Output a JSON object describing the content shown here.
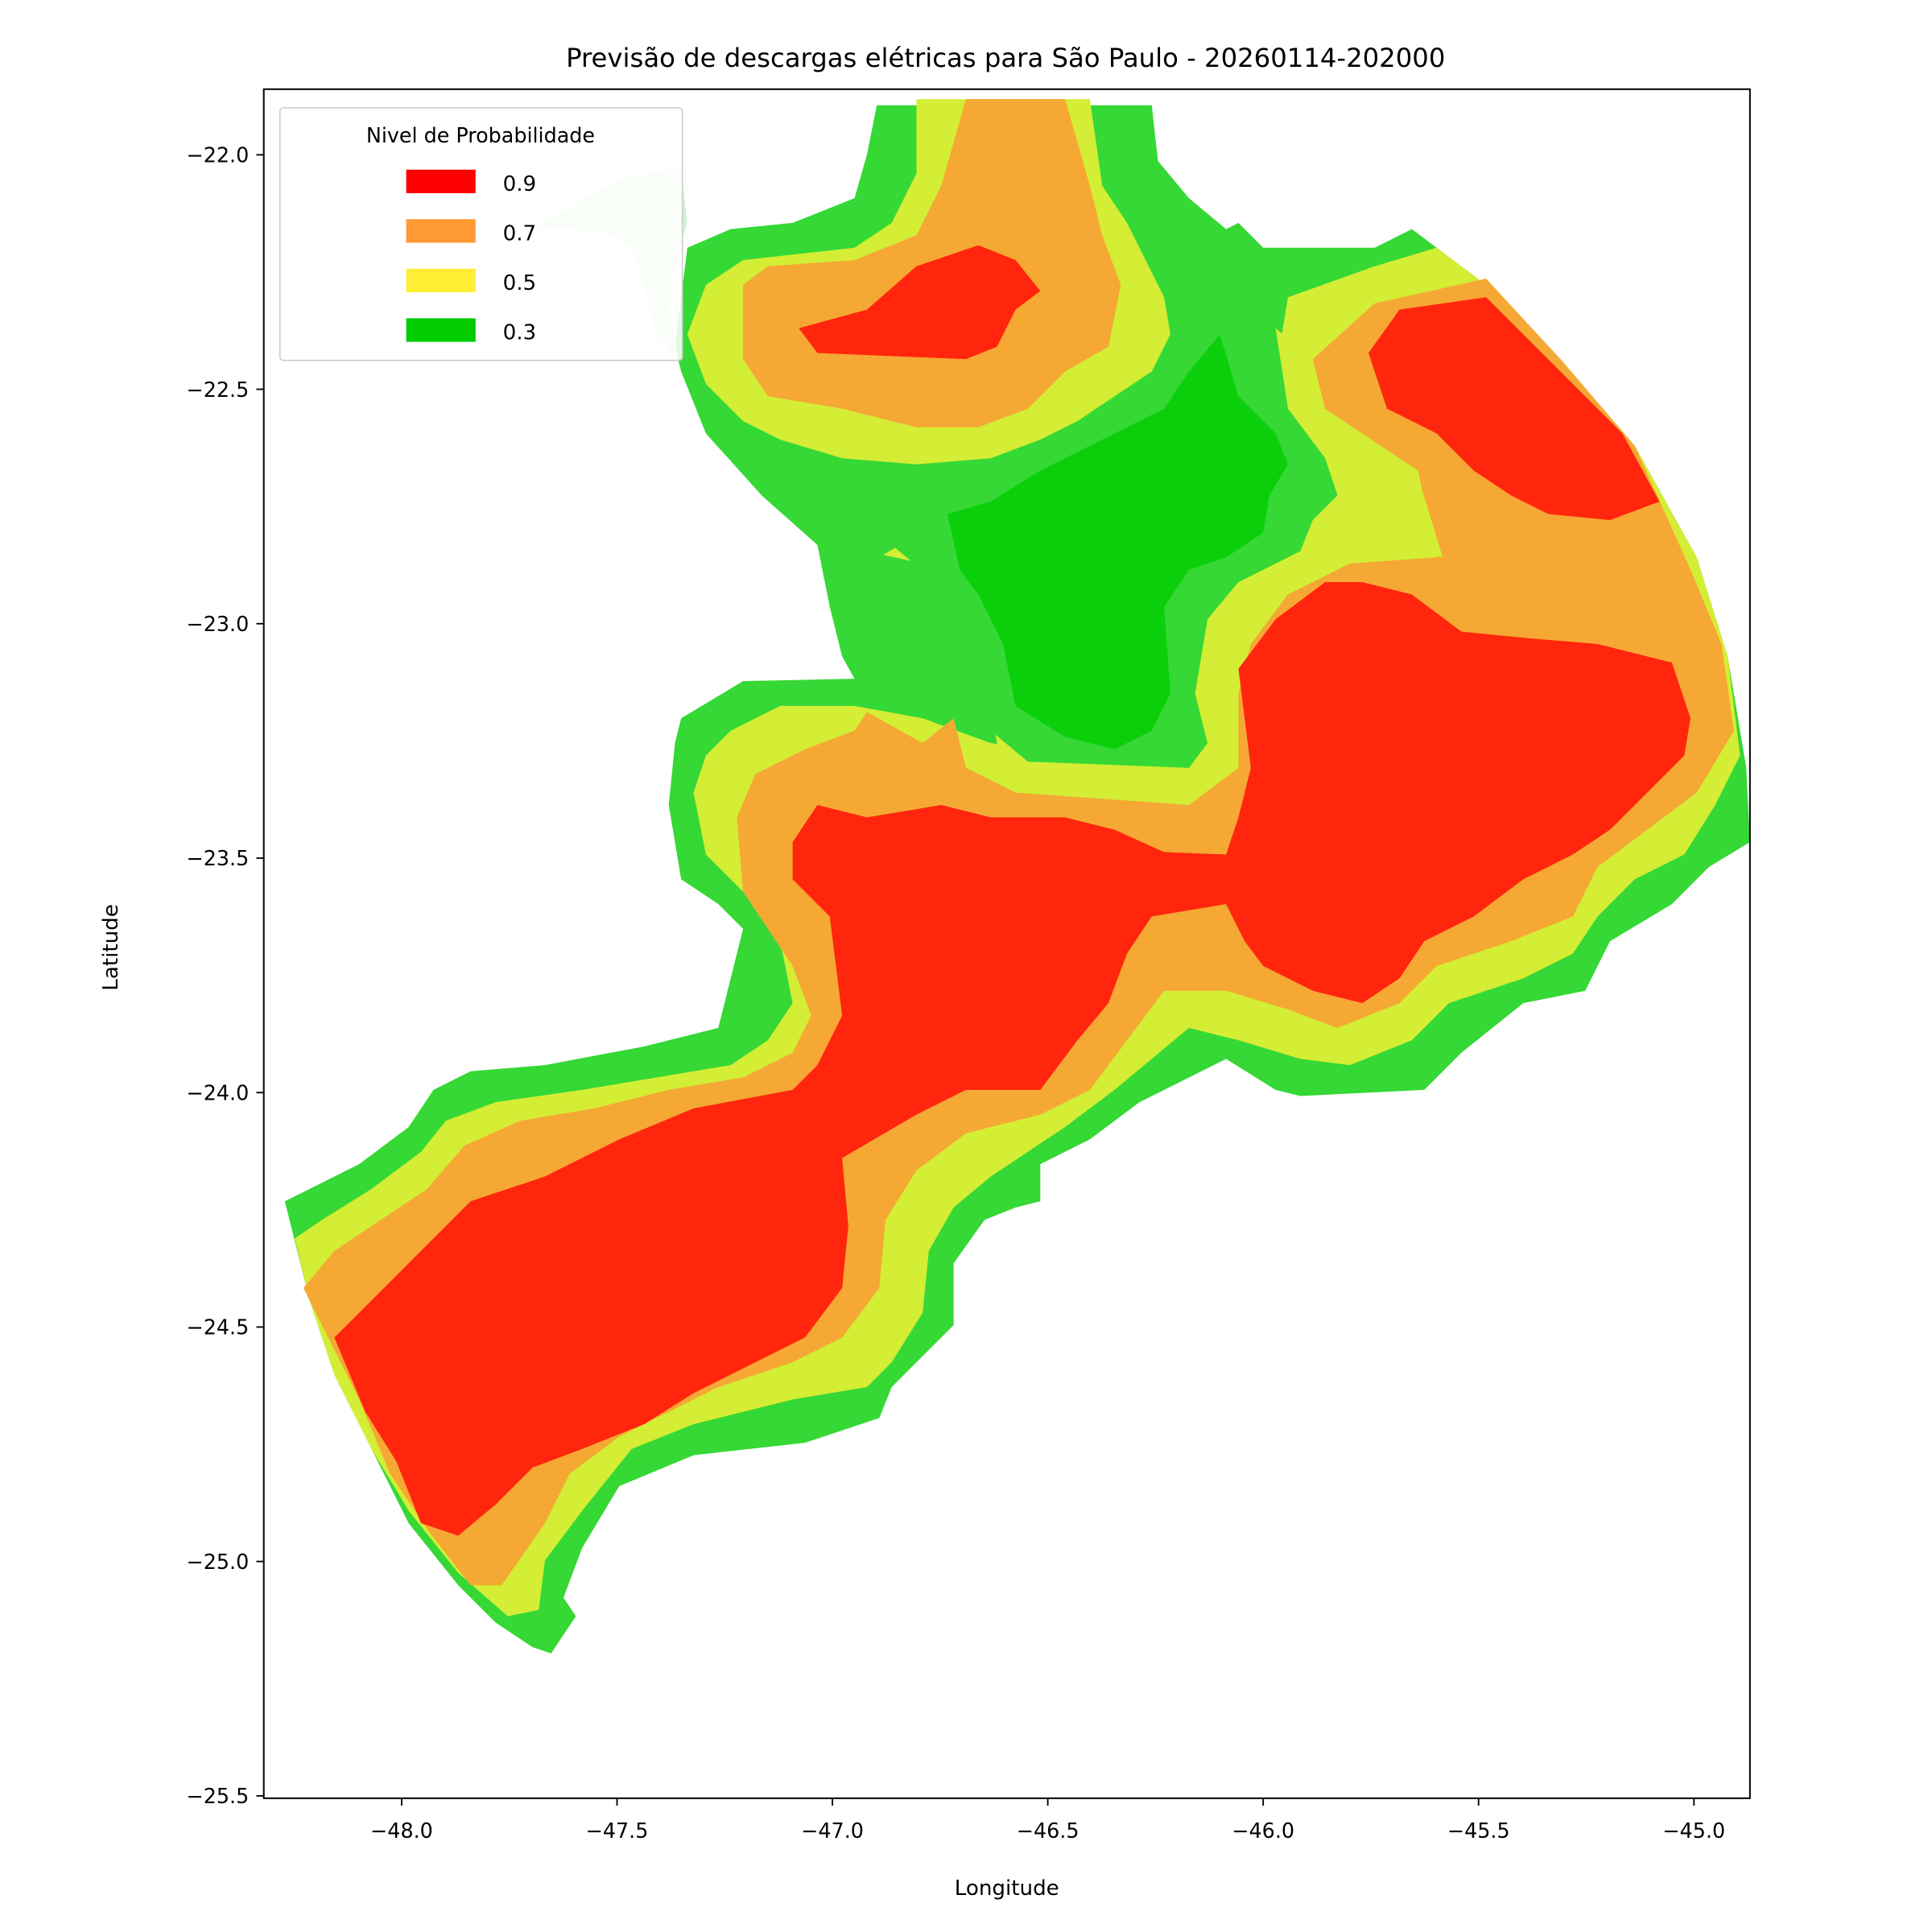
{
  "chart_data": {
    "type": "contour",
    "title": "Previsão de descargas elétricas para São Paulo - 20260114-202000",
    "xlabel": "Longitude",
    "ylabel": "Latitude",
    "xlim": [
      -48.32,
      -44.87
    ],
    "ylim": [
      -25.505,
      -21.86
    ],
    "xticks": [
      -48.0,
      -47.5,
      -47.0,
      -46.5,
      -46.0,
      -45.5,
      -45.0
    ],
    "yticks": [
      -22.0,
      -22.5,
      -23.0,
      -23.5,
      -24.0,
      -24.5,
      -25.0,
      -25.5
    ],
    "grid": false,
    "legend": {
      "title": "Nivel de Probabilidade",
      "placement": "upper-left",
      "entries": [
        {
          "label": "0.9",
          "color": "#ff0000"
        },
        {
          "label": "0.7",
          "color": "#ff9933"
        },
        {
          "label": "0.5",
          "color": "#ffee33"
        },
        {
          "label": "0.3",
          "color": "#00cc00"
        }
      ]
    },
    "fill_colors": {
      "level_0_9": "#ff260d",
      "level_0_7": "#f5a833",
      "level_0_5": "#d4ed35",
      "level_0_3_outer": "#35d835",
      "level_0_3_core": "#0bcf0b",
      "faded": "#d3f3d3"
    }
  }
}
